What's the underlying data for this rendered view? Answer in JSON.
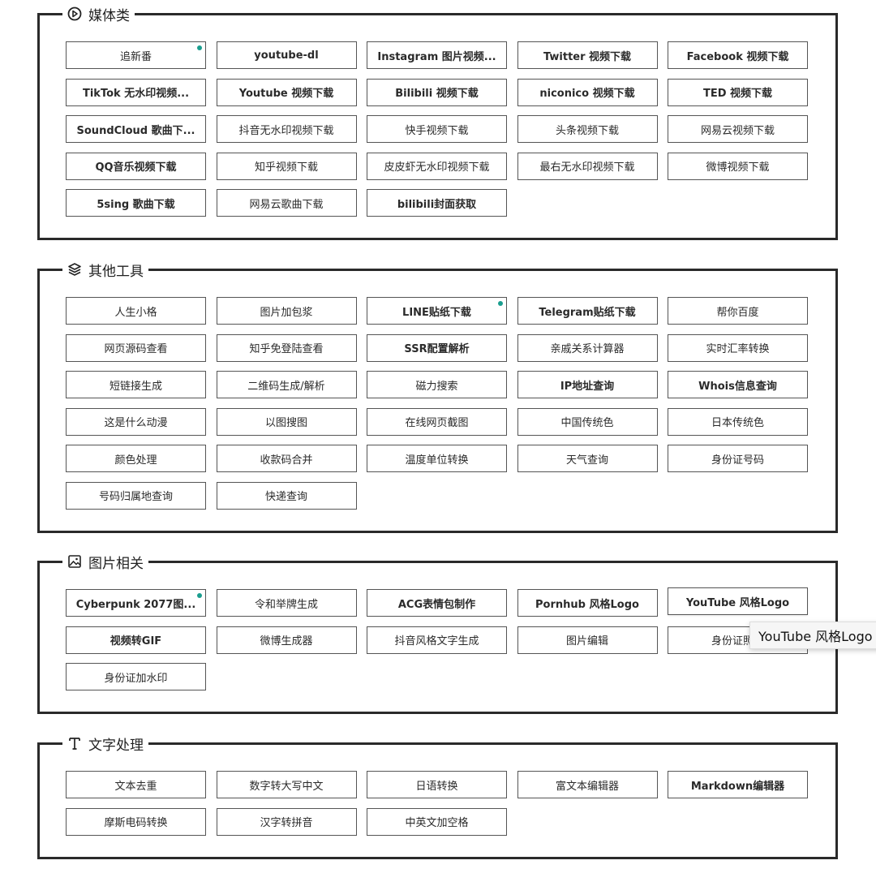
{
  "accent_color": "#1a9e8f",
  "sections": [
    {
      "title": "媒体类",
      "icon": "play-circle-icon",
      "items": [
        {
          "label": "追新番",
          "new": true
        },
        {
          "label": "youtube-dl"
        },
        {
          "label": "Instagram 图片视频..."
        },
        {
          "label": "Twitter 视频下载"
        },
        {
          "label": "Facebook 视频下载"
        },
        {
          "label": "TikTok 无水印视频..."
        },
        {
          "label": "Youtube 视频下载"
        },
        {
          "label": "Bilibili 视频下载"
        },
        {
          "label": "niconico 视频下载"
        },
        {
          "label": "TED 视频下载"
        },
        {
          "label": "SoundCloud 歌曲下..."
        },
        {
          "label": "抖音无水印视频下载"
        },
        {
          "label": "快手视频下载"
        },
        {
          "label": "头条视频下载"
        },
        {
          "label": "网易云视频下载"
        },
        {
          "label": "QQ音乐视频下载"
        },
        {
          "label": "知乎视频下载"
        },
        {
          "label": "皮皮虾无水印视频下载"
        },
        {
          "label": "最右无水印视频下载"
        },
        {
          "label": "微博视频下载"
        },
        {
          "label": "5sing 歌曲下载"
        },
        {
          "label": "网易云歌曲下载"
        },
        {
          "label": "bilibili封面获取"
        }
      ]
    },
    {
      "title": "其他工具",
      "icon": "layers-icon",
      "items": [
        {
          "label": "人生小格"
        },
        {
          "label": "图片加包浆"
        },
        {
          "label": "LINE贴纸下载",
          "new": true
        },
        {
          "label": "Telegram贴纸下载"
        },
        {
          "label": "帮你百度"
        },
        {
          "label": "网页源码查看"
        },
        {
          "label": "知乎免登陆查看"
        },
        {
          "label": "SSR配置解析"
        },
        {
          "label": "亲戚关系计算器"
        },
        {
          "label": "实时汇率转换"
        },
        {
          "label": "短链接生成"
        },
        {
          "label": "二维码生成/解析"
        },
        {
          "label": "磁力搜索"
        },
        {
          "label": "IP地址查询"
        },
        {
          "label": "Whois信息查询"
        },
        {
          "label": "这是什么动漫"
        },
        {
          "label": "以图搜图"
        },
        {
          "label": "在线网页截图"
        },
        {
          "label": "中国传统色"
        },
        {
          "label": "日本传统色"
        },
        {
          "label": "颜色处理"
        },
        {
          "label": "收款码合并"
        },
        {
          "label": "温度单位转换"
        },
        {
          "label": "天气查询"
        },
        {
          "label": "身份证号码"
        },
        {
          "label": "号码归属地查询"
        },
        {
          "label": "快递查询"
        }
      ]
    },
    {
      "title": "图片相关",
      "icon": "image-icon",
      "items": [
        {
          "label": "Cyberpunk 2077图...",
          "new": true
        },
        {
          "label": "令和举牌生成"
        },
        {
          "label": "ACG表情包制作"
        },
        {
          "label": "Pornhub 风格Logo"
        },
        {
          "label": "YouTube 风格Logo",
          "hover": true
        },
        {
          "label": "视频转GIF"
        },
        {
          "label": "微博生成器"
        },
        {
          "label": "抖音风格文字生成"
        },
        {
          "label": "图片编辑"
        },
        {
          "label": "身份证照片"
        },
        {
          "label": "身份证加水印"
        }
      ]
    },
    {
      "title": "文字处理",
      "icon": "text-icon",
      "items": [
        {
          "label": "文本去重"
        },
        {
          "label": "数字转大写中文"
        },
        {
          "label": "日语转换"
        },
        {
          "label": "富文本编辑器"
        },
        {
          "label": "Markdown编辑器"
        },
        {
          "label": "摩斯电码转换"
        },
        {
          "label": "汉字转拼音"
        },
        {
          "label": "中英文加空格"
        }
      ]
    }
  ],
  "tooltip": "YouTube 风格Logo"
}
